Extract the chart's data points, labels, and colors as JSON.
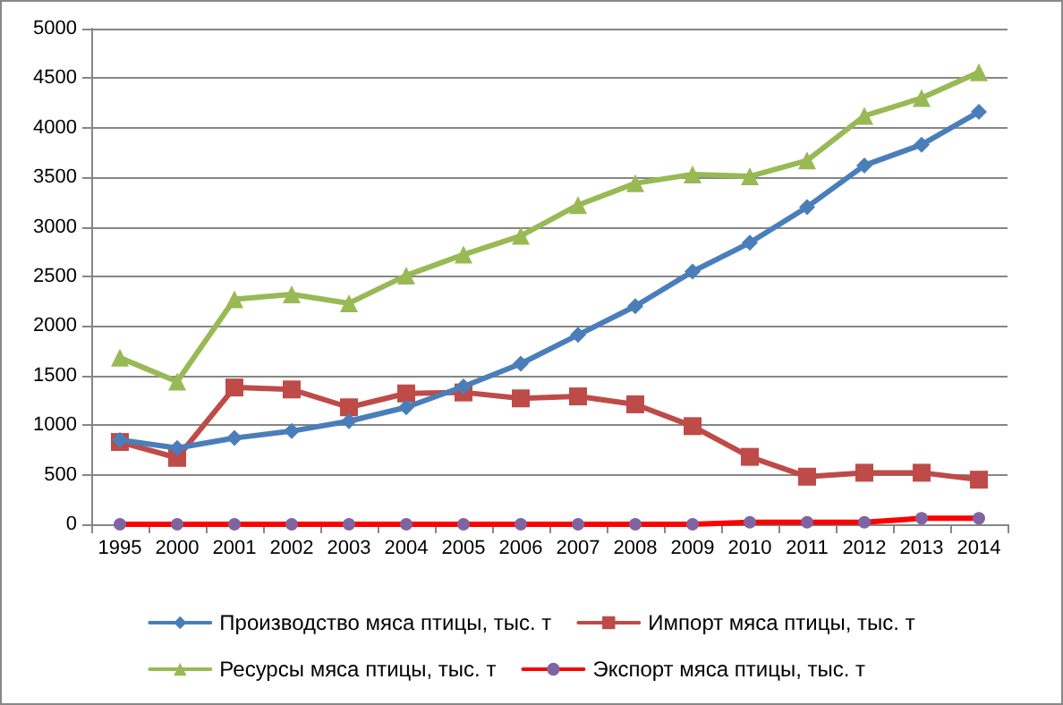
{
  "chart_data": {
    "type": "line",
    "categories": [
      "1995",
      "2000",
      "2001",
      "2002",
      "2003",
      "2004",
      "2005",
      "2006",
      "2007",
      "2008",
      "2009",
      "2010",
      "2011",
      "2012",
      "2013",
      "2014"
    ],
    "series": [
      {
        "name": "Производство мяса птицы, тыс. т",
        "color": "#4a7ebb",
        "marker": "diamond",
        "values": [
          850,
          770,
          870,
          940,
          1040,
          1180,
          1390,
          1620,
          1910,
          2200,
          2550,
          2840,
          3200,
          3620,
          3830,
          4160
        ]
      },
      {
        "name": "Импорт мяса птицы, тыс. т",
        "color": "#be4b48",
        "marker": "square",
        "values": [
          830,
          670,
          1380,
          1360,
          1180,
          1320,
          1330,
          1270,
          1290,
          1210,
          990,
          680,
          480,
          520,
          520,
          450
        ]
      },
      {
        "name": "Ресурсы мяса птицы, тыс. т",
        "color": "#98b954",
        "marker": "triangle",
        "values": [
          1680,
          1440,
          2270,
          2320,
          2230,
          2510,
          2720,
          2910,
          3220,
          3440,
          3530,
          3510,
          3670,
          4120,
          4300,
          4560
        ]
      },
      {
        "name": "Экспорт мяса птицы, тыс. т",
        "color": "#ff0000",
        "marker": "circle",
        "colors": [
          "#8064a2",
          "#8064a2",
          "#8064a2",
          "#8064a2",
          "#8064a2",
          "#8064a2",
          "#8064a2",
          "#8064a2",
          "#8064a2",
          "#8064a2",
          "#8064a2",
          "#8064a2",
          "#8064a2",
          "#8064a2",
          "#8064a2",
          "#8064a2"
        ],
        "values": [
          0,
          0,
          0,
          0,
          0,
          0,
          0,
          0,
          0,
          0,
          0,
          20,
          20,
          20,
          60,
          60
        ]
      }
    ],
    "ylim": [
      0,
      5000
    ],
    "yticks": [
      0,
      500,
      1000,
      1500,
      2000,
      2500,
      3000,
      3500,
      4000,
      4500,
      5000
    ],
    "grid": "y",
    "legend": "bottom"
  }
}
